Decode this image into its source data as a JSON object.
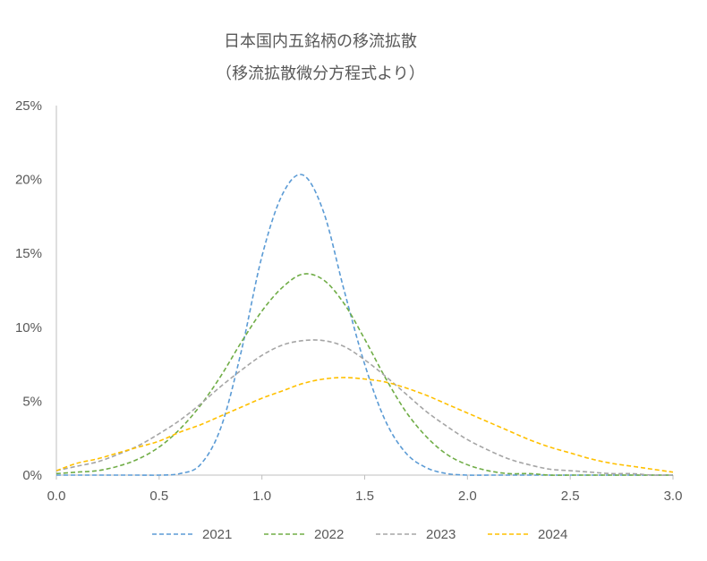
{
  "chart_data": {
    "type": "line",
    "title": "日本国内五銘柄の移流拡散",
    "subtitle": "（移流拡散微分方程式より）",
    "xlabel": "",
    "ylabel": "",
    "xlim": [
      0,
      3
    ],
    "ylim": [
      0,
      0.25
    ],
    "x_ticks": [
      "0.0",
      "0.5",
      "1.0",
      "1.5",
      "2.0",
      "2.5",
      "3.0"
    ],
    "y_ticks": [
      "0%",
      "5%",
      "10%",
      "15%",
      "20%",
      "25%"
    ],
    "grid": false,
    "legend": "bottom",
    "line_style": "dashed",
    "x": [
      0.0,
      0.1,
      0.2,
      0.3,
      0.4,
      0.5,
      0.6,
      0.7,
      0.8,
      0.9,
      1.0,
      1.1,
      1.2,
      1.3,
      1.4,
      1.5,
      1.6,
      1.7,
      1.8,
      1.9,
      2.0,
      2.1,
      2.2,
      2.3,
      2.4,
      2.5,
      2.6,
      2.7,
      2.8,
      2.9,
      3.0
    ],
    "series": [
      {
        "name": "2021",
        "color": "#5b9bd5",
        "values": [
          0.0,
          0.0,
          0.0,
          0.0,
          0.0,
          0.0,
          0.001,
          0.007,
          0.032,
          0.084,
          0.148,
          0.19,
          0.203,
          0.178,
          0.125,
          0.075,
          0.037,
          0.015,
          0.005,
          0.001,
          0.0,
          0.0,
          0.0,
          0.0,
          0.0,
          0.0,
          0.0,
          0.0,
          0.0,
          0.0,
          0.0
        ]
      },
      {
        "name": "2022",
        "color": "#70ad47",
        "values": [
          0.001,
          0.002,
          0.003,
          0.006,
          0.011,
          0.019,
          0.031,
          0.047,
          0.067,
          0.09,
          0.111,
          0.127,
          0.136,
          0.132,
          0.116,
          0.092,
          0.066,
          0.043,
          0.026,
          0.014,
          0.007,
          0.003,
          0.001,
          0.001,
          0.0,
          0.0,
          0.0,
          0.0,
          0.0,
          0.0,
          0.0
        ]
      },
      {
        "name": "2023",
        "color": "#a5a5a5",
        "values": [
          0.003,
          0.006,
          0.009,
          0.014,
          0.02,
          0.028,
          0.037,
          0.048,
          0.06,
          0.071,
          0.081,
          0.088,
          0.091,
          0.091,
          0.087,
          0.078,
          0.067,
          0.055,
          0.043,
          0.033,
          0.024,
          0.017,
          0.011,
          0.007,
          0.004,
          0.003,
          0.002,
          0.001,
          0.001,
          0.0,
          0.0
        ]
      },
      {
        "name": "2024",
        "color": "#ffc000",
        "values": [
          0.003,
          0.008,
          0.011,
          0.015,
          0.019,
          0.023,
          0.029,
          0.034,
          0.04,
          0.046,
          0.052,
          0.057,
          0.062,
          0.065,
          0.066,
          0.065,
          0.063,
          0.059,
          0.054,
          0.048,
          0.042,
          0.036,
          0.03,
          0.024,
          0.019,
          0.015,
          0.011,
          0.008,
          0.006,
          0.004,
          0.002
        ]
      }
    ]
  }
}
